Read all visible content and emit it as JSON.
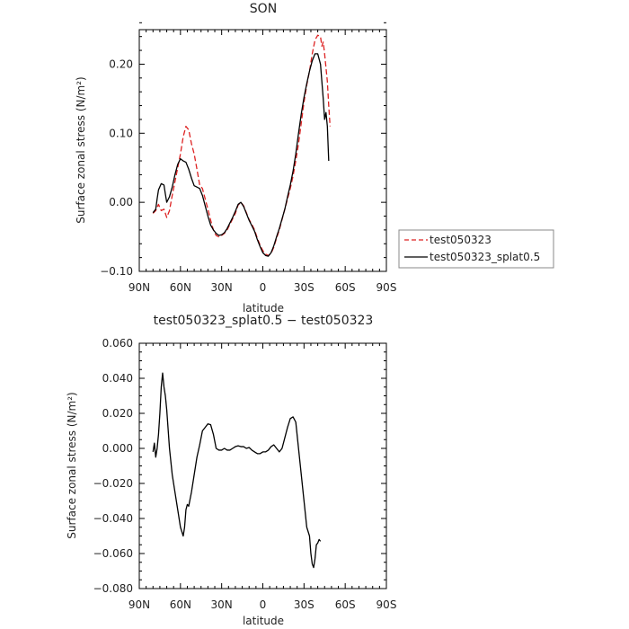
{
  "chart_data": [
    {
      "type": "line",
      "title": "SON",
      "xlabel": "latitude",
      "ylabel": "Surface zonal stress (N/m²)",
      "xlim": [
        -90,
        90
      ],
      "ylim": [
        -0.1,
        0.25
      ],
      "xticks": [
        -90,
        -60,
        -30,
        0,
        30,
        60,
        90
      ],
      "xtick_labels": [
        "90N",
        "60N",
        "30N",
        "0",
        "30S",
        "60S",
        "90S"
      ],
      "yticks": [
        -0.1,
        0.0,
        0.1,
        0.2
      ],
      "ytick_labels": [
        "−0.10",
        "0.00",
        "0.10",
        "0.20"
      ],
      "grid": false,
      "legend_position": "right",
      "series": [
        {
          "name": "test050323",
          "color": "#dd2222",
          "dash": "dashed",
          "points": [
            [
              -80,
              -0.016
            ],
            [
              -78,
              -0.012
            ],
            [
              -76,
              -0.003
            ],
            [
              -74,
              -0.012
            ],
            [
              -72,
              -0.01
            ],
            [
              -70,
              -0.022
            ],
            [
              -68,
              -0.012
            ],
            [
              -66,
              0.01
            ],
            [
              -64,
              0.03
            ],
            [
              -62,
              0.05
            ],
            [
              -60,
              0.07
            ],
            [
              -58,
              0.095
            ],
            [
              -56,
              0.11
            ],
            [
              -54,
              0.105
            ],
            [
              -52,
              0.085
            ],
            [
              -50,
              0.07
            ],
            [
              -48,
              0.048
            ],
            [
              -46,
              0.025
            ],
            [
              -44,
              0.02
            ],
            [
              -42,
              0.005
            ],
            [
              -40,
              -0.01
            ],
            [
              -38,
              -0.026
            ],
            [
              -36,
              -0.04
            ],
            [
              -34,
              -0.048
            ],
            [
              -32,
              -0.05
            ],
            [
              -30,
              -0.048
            ],
            [
              -28,
              -0.045
            ],
            [
              -26,
              -0.04
            ],
            [
              -24,
              -0.032
            ],
            [
              -22,
              -0.024
            ],
            [
              -20,
              -0.016
            ],
            [
              -18,
              -0.004
            ],
            [
              -16,
              0.0
            ],
            [
              -14,
              -0.005
            ],
            [
              -12,
              -0.015
            ],
            [
              -10,
              -0.025
            ],
            [
              -8,
              -0.032
            ],
            [
              -6,
              -0.04
            ],
            [
              -4,
              -0.052
            ],
            [
              -2,
              -0.062
            ],
            [
              0,
              -0.07
            ],
            [
              2,
              -0.075
            ],
            [
              4,
              -0.077
            ],
            [
              6,
              -0.074
            ],
            [
              8,
              -0.065
            ],
            [
              10,
              -0.052
            ],
            [
              12,
              -0.04
            ],
            [
              14,
              -0.025
            ],
            [
              16,
              -0.01
            ],
            [
              18,
              0.005
            ],
            [
              20,
              0.02
            ],
            [
              22,
              0.038
            ],
            [
              24,
              0.06
            ],
            [
              26,
              0.085
            ],
            [
              28,
              0.115
            ],
            [
              30,
              0.145
            ],
            [
              32,
              0.17
            ],
            [
              34,
              0.19
            ],
            [
              36,
              0.215
            ],
            [
              38,
              0.235
            ],
            [
              40,
              0.242
            ],
            [
              42,
              0.24
            ],
            [
              43,
              0.226
            ],
            [
              44,
              0.232
            ],
            [
              45,
              0.215
            ],
            [
              46,
              0.195
            ],
            [
              47,
              0.175
            ],
            [
              48,
              0.14
            ],
            [
              49,
              0.11
            ]
          ]
        },
        {
          "name": "test050323_splat0.5",
          "color": "#000000",
          "dash": "solid",
          "points": [
            [
              -80,
              -0.015
            ],
            [
              -78,
              -0.01
            ],
            [
              -77,
              0.005
            ],
            [
              -76,
              0.018
            ],
            [
              -74,
              0.027
            ],
            [
              -72,
              0.025
            ],
            [
              -71,
              0.012
            ],
            [
              -70,
              0.0
            ],
            [
              -68,
              0.008
            ],
            [
              -66,
              0.022
            ],
            [
              -64,
              0.04
            ],
            [
              -62,
              0.055
            ],
            [
              -60,
              0.063
            ],
            [
              -58,
              0.06
            ],
            [
              -56,
              0.058
            ],
            [
              -54,
              0.048
            ],
            [
              -52,
              0.035
            ],
            [
              -50,
              0.024
            ],
            [
              -48,
              0.022
            ],
            [
              -46,
              0.02
            ],
            [
              -44,
              0.01
            ],
            [
              -42,
              -0.005
            ],
            [
              -40,
              -0.02
            ],
            [
              -38,
              -0.033
            ],
            [
              -36,
              -0.04
            ],
            [
              -34,
              -0.045
            ],
            [
              -32,
              -0.048
            ],
            [
              -30,
              -0.047
            ],
            [
              -28,
              -0.044
            ],
            [
              -26,
              -0.038
            ],
            [
              -24,
              -0.03
            ],
            [
              -22,
              -0.022
            ],
            [
              -20,
              -0.013
            ],
            [
              -18,
              -0.003
            ],
            [
              -16,
              0.0
            ],
            [
              -14,
              -0.006
            ],
            [
              -12,
              -0.016
            ],
            [
              -10,
              -0.026
            ],
            [
              -8,
              -0.034
            ],
            [
              -6,
              -0.042
            ],
            [
              -4,
              -0.054
            ],
            [
              -2,
              -0.064
            ],
            [
              0,
              -0.073
            ],
            [
              2,
              -0.077
            ],
            [
              4,
              -0.078
            ],
            [
              6,
              -0.073
            ],
            [
              8,
              -0.063
            ],
            [
              10,
              -0.05
            ],
            [
              12,
              -0.038
            ],
            [
              14,
              -0.024
            ],
            [
              16,
              -0.01
            ],
            [
              18,
              0.008
            ],
            [
              20,
              0.025
            ],
            [
              22,
              0.045
            ],
            [
              24,
              0.07
            ],
            [
              26,
              0.1
            ],
            [
              28,
              0.128
            ],
            [
              30,
              0.152
            ],
            [
              32,
              0.172
            ],
            [
              34,
              0.19
            ],
            [
              36,
              0.205
            ],
            [
              38,
              0.215
            ],
            [
              40,
              0.215
            ],
            [
              42,
              0.2
            ],
            [
              43,
              0.175
            ],
            [
              44,
              0.15
            ],
            [
              45,
              0.12
            ],
            [
              46,
              0.13
            ],
            [
              47,
              0.11
            ],
            [
              48,
              0.06
            ]
          ]
        }
      ]
    },
    {
      "type": "line",
      "title": "test050323_splat0.5 − test050323",
      "xlabel": "latitude",
      "ylabel": "Surface zonal stress (N/m²)",
      "xlim": [
        -90,
        90
      ],
      "ylim": [
        -0.08,
        0.06
      ],
      "xticks": [
        -90,
        -60,
        -30,
        0,
        30,
        60,
        90
      ],
      "xtick_labels": [
        "90N",
        "60N",
        "30N",
        "0",
        "30S",
        "60S",
        "90S"
      ],
      "yticks": [
        -0.08,
        -0.06,
        -0.04,
        -0.02,
        0.0,
        0.02,
        0.04,
        0.06
      ],
      "ytick_labels": [
        "−0.080",
        "−0.060",
        "−0.040",
        "−0.020",
        "0.000",
        "0.020",
        "0.040",
        "0.060"
      ],
      "grid": false,
      "series": [
        {
          "color": "#000000",
          "dash": "solid",
          "points": [
            [
              -80,
              -0.002
            ],
            [
              -79,
              0.003
            ],
            [
              -78,
              -0.005
            ],
            [
              -77,
              0.0
            ],
            [
              -76,
              0.008
            ],
            [
              -75,
              0.02
            ],
            [
              -74,
              0.035
            ],
            [
              -73,
              0.043
            ],
            [
              -72,
              0.035
            ],
            [
              -71,
              0.03
            ],
            [
              -70,
              0.022
            ],
            [
              -68,
              0.0
            ],
            [
              -66,
              -0.015
            ],
            [
              -64,
              -0.025
            ],
            [
              -62,
              -0.035
            ],
            [
              -60,
              -0.045
            ],
            [
              -58,
              -0.05
            ],
            [
              -57,
              -0.045
            ],
            [
              -56,
              -0.035
            ],
            [
              -55,
              -0.032
            ],
            [
              -54,
              -0.033
            ],
            [
              -52,
              -0.025
            ],
            [
              -50,
              -0.015
            ],
            [
              -48,
              -0.005
            ],
            [
              -46,
              0.002
            ],
            [
              -44,
              0.01
            ],
            [
              -42,
              0.012
            ],
            [
              -40,
              0.014
            ],
            [
              -38,
              0.0135
            ],
            [
              -36,
              0.008
            ],
            [
              -34,
              0.0
            ],
            [
              -32,
              -0.001
            ],
            [
              -30,
              -0.001
            ],
            [
              -28,
              0.0
            ],
            [
              -26,
              -0.001
            ],
            [
              -24,
              -0.001
            ],
            [
              -22,
              0.0
            ],
            [
              -20,
              0.001
            ],
            [
              -18,
              0.0015
            ],
            [
              -16,
              0.001
            ],
            [
              -14,
              0.001
            ],
            [
              -12,
              0.0
            ],
            [
              -10,
              0.0005
            ],
            [
              -8,
              -0.001
            ],
            [
              -6,
              -0.002
            ],
            [
              -4,
              -0.003
            ],
            [
              -2,
              -0.003
            ],
            [
              0,
              -0.002
            ],
            [
              2,
              -0.002
            ],
            [
              4,
              -0.001
            ],
            [
              6,
              0.001
            ],
            [
              8,
              0.002
            ],
            [
              10,
              0.0
            ],
            [
              12,
              -0.002
            ],
            [
              14,
              0.0
            ],
            [
              16,
              0.006
            ],
            [
              18,
              0.012
            ],
            [
              20,
              0.017
            ],
            [
              22,
              0.018
            ],
            [
              24,
              0.015
            ],
            [
              26,
              0.0
            ],
            [
              28,
              -0.015
            ],
            [
              30,
              -0.03
            ],
            [
              32,
              -0.045
            ],
            [
              34,
              -0.05
            ],
            [
              35,
              -0.06
            ],
            [
              36,
              -0.066
            ],
            [
              37,
              -0.068
            ],
            [
              38,
              -0.063
            ],
            [
              39,
              -0.055
            ],
            [
              40,
              -0.054
            ],
            [
              41,
              -0.052
            ],
            [
              42,
              -0.053
            ]
          ]
        }
      ]
    }
  ]
}
